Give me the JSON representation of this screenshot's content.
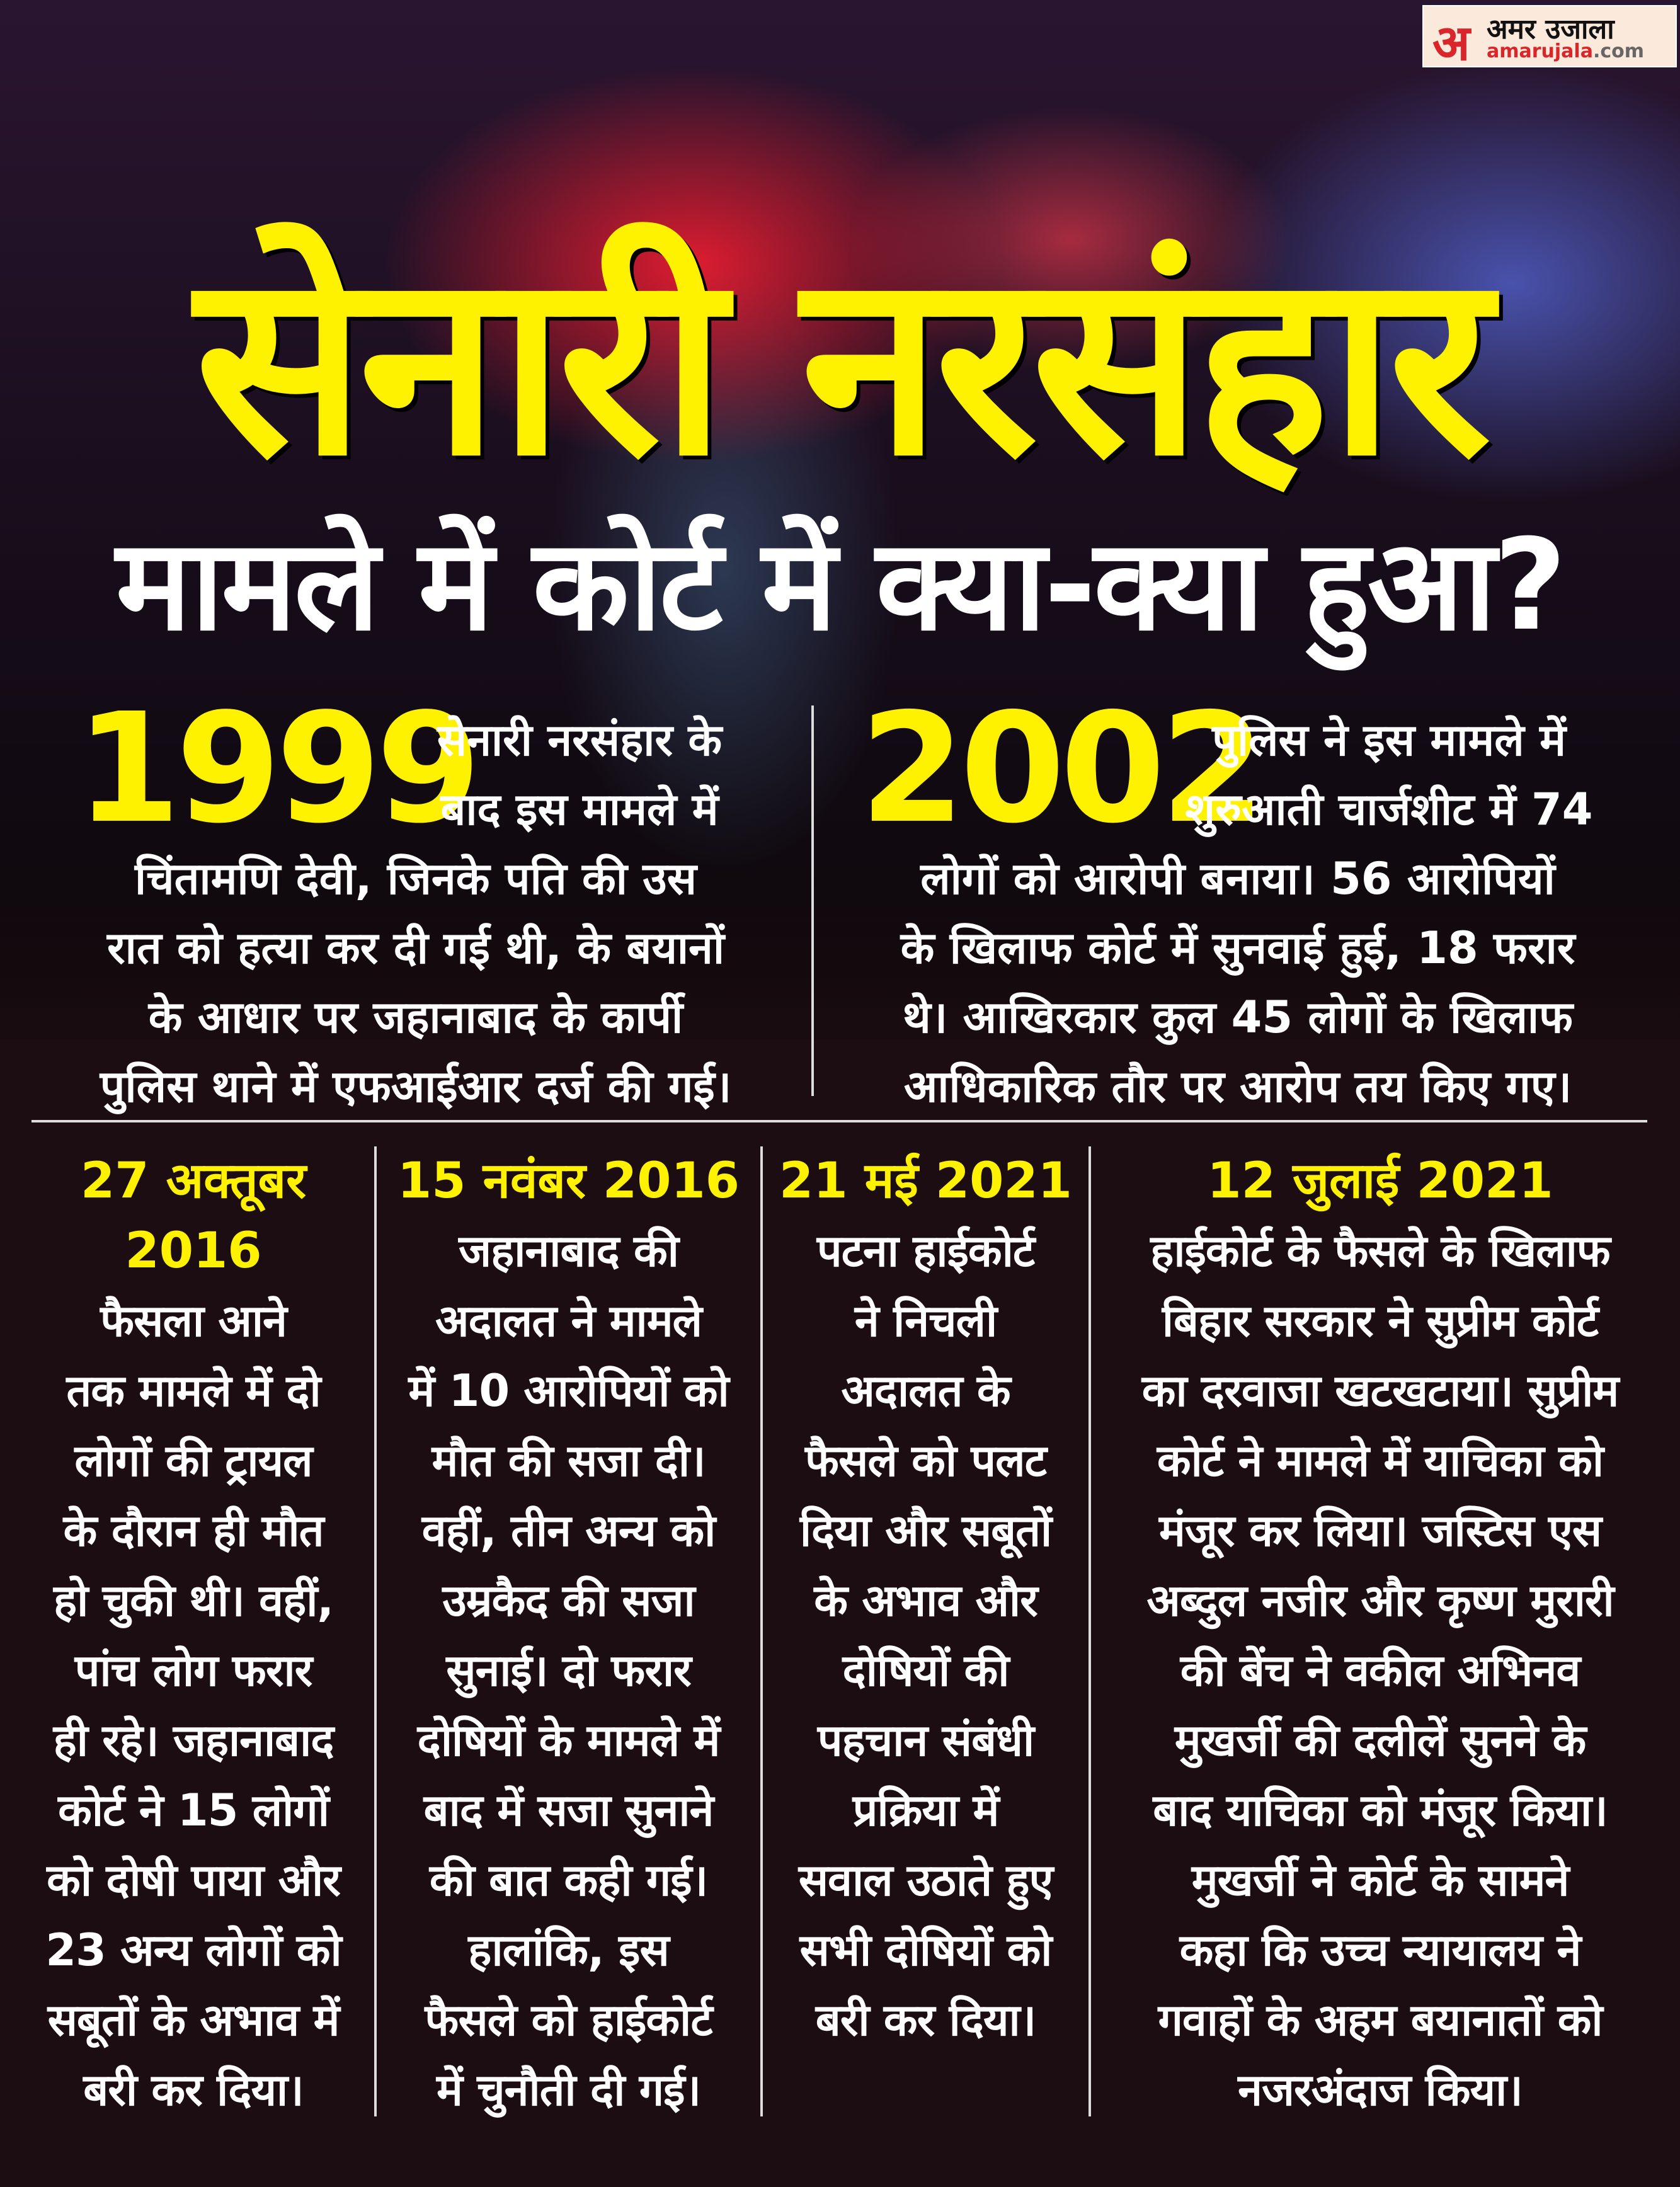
{
  "brand": {
    "mark": "अ",
    "name_hi": "अमर उजाला",
    "name_en": "amarujala",
    ".com": ".com",
    "domain_suffix": ".com",
    "colors": {
      "red": "#d8262b"
    }
  },
  "title": {
    "line1": "सेनारी नरसंहार",
    "line2": "मामले में कोर्ट में क्या-क्या हुआ?",
    "color": "#fff200"
  },
  "top_blocks": [
    {
      "year": "1999",
      "lines_side": [
        "सेनारी नरसंहार के",
        "बाद इस मामले में"
      ],
      "lines": [
        "चिंतामणि देवी, जिनके पति की उस",
        "रात को हत्या कर दी गई थी, के बयानों",
        "के आधार पर जहानाबाद के कार्पी",
        "पुलिस थाने में एफआईआर दर्ज की गई।"
      ]
    },
    {
      "year": "2002",
      "lines_side": [
        "पुलिस ने इस मामले में",
        "शुरुआती चार्जशीट में 74"
      ],
      "lines": [
        "लोगों को आरोपी बनाया। 56 आरोपियों",
        "के खिलाफ कोर्ट में सुनवाई हुई, 18 फरार",
        "थे। आखिरकार कुल 45 लोगों के खिलाफ",
        "आधिकारिक तौर पर आरोप तय किए गए।"
      ]
    }
  ],
  "timeline": [
    {
      "date_lines": [
        "27 अक्तूबर",
        "2016"
      ],
      "lines": [
        "फैसला आने",
        "तक मामले में दो",
        "लोगों की ट्रायल",
        "के दौरान ही मौत",
        "हो चुकी थी। वहीं,",
        "पांच लोग फरार",
        "ही रहे। जहानाबाद",
        "कोर्ट ने 15 लोगों",
        "को दोषी पाया और",
        "23 अन्य लोगों को",
        "सबूतों के अभाव में",
        "बरी कर दिया।"
      ]
    },
    {
      "date_lines": [
        "15 नवंबर 2016"
      ],
      "lines": [
        "जहानाबाद की",
        "अदालत ने मामले",
        "में 10 आरोपियों को",
        "मौत की सजा दी।",
        "वहीं, तीन अन्य को",
        "उम्रकैद की सजा",
        "सुनाई। दो फरार",
        "दोषियों के मामले में",
        "बाद में सजा सुनाने",
        "की बात कही गई।",
        "हालांकि, इस",
        "फैसले को हाईकोर्ट",
        "में चुनौती दी गई।"
      ]
    },
    {
      "date_lines": [
        "21 मई 2021"
      ],
      "lines": [
        "पटना हाईकोर्ट",
        "ने निचली",
        "अदालत के",
        "फैसले को पलट",
        "दिया और सबूतों",
        "के अभाव और",
        "दोषियों की",
        "पहचान संबंधी",
        "प्रक्रिया में",
        "सवाल उठाते हुए",
        "सभी दोषियों को",
        "बरी कर दिया।"
      ]
    },
    {
      "date_lines": [
        "12 जुलाई 2021"
      ],
      "lines": [
        "हाईकोर्ट के फैसले के खिलाफ",
        "बिहार सरकार ने सुप्रीम कोर्ट",
        "का दरवाजा खटखटाया। सुप्रीम",
        "कोर्ट ने मामले में याचिका को",
        "मंजूर कर लिया। जस्टिस एस",
        "अब्दुल नजीर और कृष्ण मुरारी",
        "की बेंच ने वकील अभिनव",
        "मुखर्जी की दलीलें सुनने के",
        "बाद याचिका को मंजूर किया।",
        "मुखर्जी ने कोर्ट के सामने",
        "कहा कि उच्च न्यायालय ने",
        "गवाहों के अहम बयानातों को",
        "नजरअंदाज किया।"
      ]
    }
  ]
}
